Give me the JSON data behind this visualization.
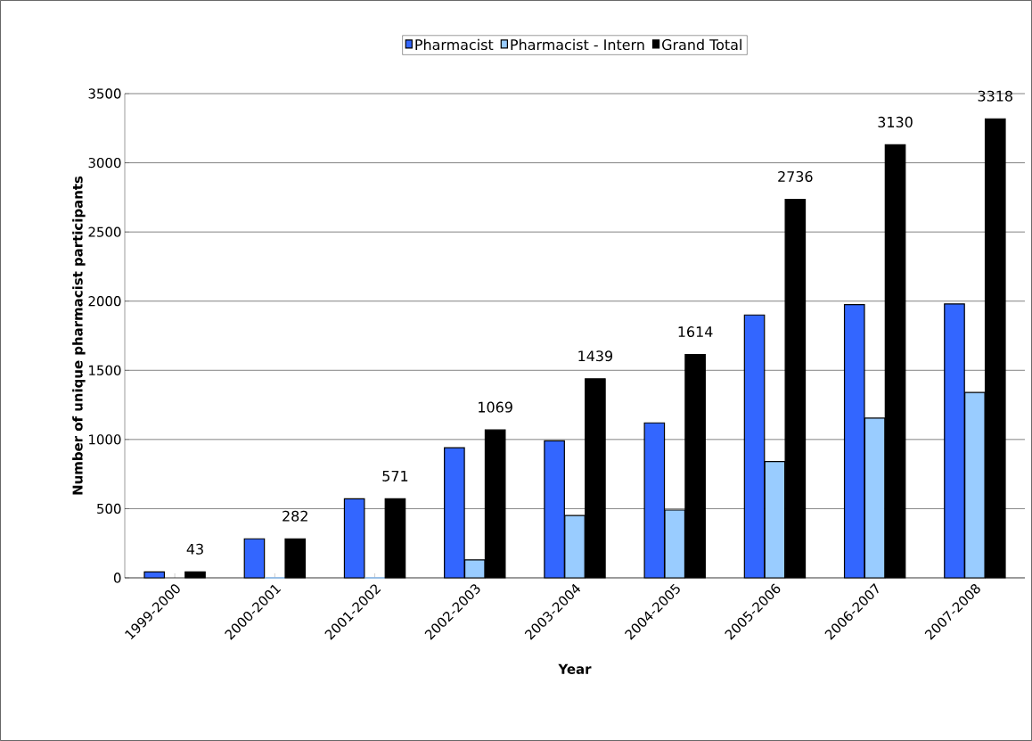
{
  "chart_data": {
    "type": "bar",
    "xlabel": "Year",
    "ylabel": "Number of unique pharmacist participants",
    "categories": [
      "1999-2000",
      "2000-2001",
      "2001-2002",
      "2002-2003",
      "2003-2004",
      "2004-2005",
      "2005-2006",
      "2006-2007",
      "2007-2008"
    ],
    "series": [
      {
        "name": "Pharmacist",
        "color": "#3366ff",
        "values": [
          43,
          282,
          571,
          940,
          990,
          1120,
          1900,
          1975,
          1980
        ]
      },
      {
        "name": "Pharmacist - Intern",
        "color": "#99ccff",
        "values": [
          null,
          0,
          0,
          130,
          450,
          490,
          840,
          1155,
          1340
        ]
      },
      {
        "name": "Grand Total",
        "color": "#000000",
        "values": [
          43,
          282,
          571,
          1069,
          1439,
          1614,
          2736,
          3130,
          3318
        ],
        "value_labels": [
          "43",
          "282",
          "571",
          "1069",
          "1439",
          "1614",
          "2736",
          "3130",
          "3318"
        ]
      }
    ],
    "ylim": [
      0,
      3500
    ],
    "yticks": [
      0,
      500,
      1000,
      1500,
      2000,
      2500,
      3000,
      3500
    ],
    "grid": "y",
    "legend": "top"
  }
}
